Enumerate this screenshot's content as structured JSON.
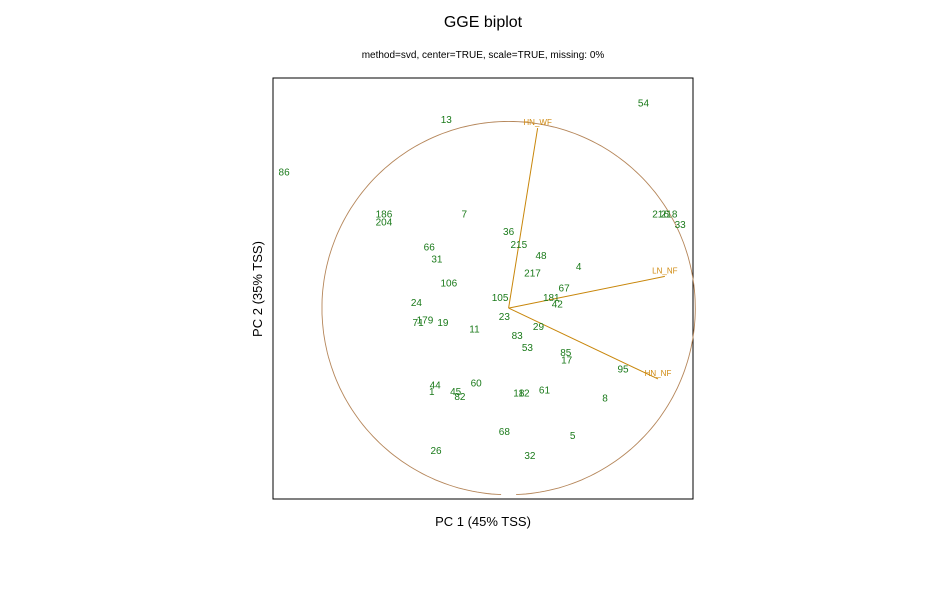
{
  "chart_data": {
    "type": "scatter",
    "title": "GGE biplot",
    "subtitle": "method=svd, center=TRUE, scale=TRUE, missing: 0%",
    "xlabel": "PC 1 (45% TSS)",
    "ylabel": "PC 2 (35% TSS)",
    "genotypes": [
      {
        "label": "54",
        "x": 1.58,
        "y": 2.46
      },
      {
        "label": "13",
        "x": -0.73,
        "y": 2.26
      },
      {
        "label": "86",
        "x": -2.63,
        "y": 1.63
      },
      {
        "label": "186",
        "x": -1.46,
        "y": 1.13
      },
      {
        "label": "204",
        "x": -1.46,
        "y": 1.03
      },
      {
        "label": "7",
        "x": -0.52,
        "y": 1.13
      },
      {
        "label": "216",
        "x": 1.78,
        "y": 1.13
      },
      {
        "label": "218",
        "x": 1.88,
        "y": 1.13
      },
      {
        "label": "33",
        "x": 2.01,
        "y": 1.0
      },
      {
        "label": "36",
        "x": 0.0,
        "y": 0.92
      },
      {
        "label": "215",
        "x": 0.12,
        "y": 0.76
      },
      {
        "label": "66",
        "x": -0.93,
        "y": 0.73
      },
      {
        "label": "48",
        "x": 0.38,
        "y": 0.63
      },
      {
        "label": "31",
        "x": -0.84,
        "y": 0.59
      },
      {
        "label": "4",
        "x": 0.82,
        "y": 0.5
      },
      {
        "label": "217",
        "x": 0.28,
        "y": 0.42
      },
      {
        "label": "106",
        "x": -0.7,
        "y": 0.3
      },
      {
        "label": "67",
        "x": 0.65,
        "y": 0.24
      },
      {
        "label": "105",
        "x": -0.1,
        "y": 0.13
      },
      {
        "label": "181",
        "x": 0.5,
        "y": 0.13
      },
      {
        "label": "24",
        "x": -1.08,
        "y": 0.07
      },
      {
        "label": "42",
        "x": 0.57,
        "y": 0.05
      },
      {
        "label": "23",
        "x": -0.05,
        "y": -0.1
      },
      {
        "label": "179",
        "x": -0.98,
        "y": -0.14
      },
      {
        "label": "71",
        "x": -1.06,
        "y": -0.17
      },
      {
        "label": "19",
        "x": -0.77,
        "y": -0.17
      },
      {
        "label": "11",
        "x": -0.4,
        "y": -0.25
      },
      {
        "label": "29",
        "x": 0.35,
        "y": -0.22
      },
      {
        "label": "83",
        "x": 0.1,
        "y": -0.33
      },
      {
        "label": "53",
        "x": 0.22,
        "y": -0.47
      },
      {
        "label": "85",
        "x": 0.67,
        "y": -0.53
      },
      {
        "label": "17",
        "x": 0.68,
        "y": -0.62
      },
      {
        "label": "95",
        "x": 1.34,
        "y": -0.73
      },
      {
        "label": "60",
        "x": -0.38,
        "y": -0.9
      },
      {
        "label": "44",
        "x": -0.86,
        "y": -0.92
      },
      {
        "label": "45",
        "x": -0.62,
        "y": -1.0
      },
      {
        "label": "1",
        "x": -0.9,
        "y": -1.0
      },
      {
        "label": "18",
        "x": 0.12,
        "y": -1.02
      },
      {
        "label": "12",
        "x": 0.18,
        "y": -1.02
      },
      {
        "label": "61",
        "x": 0.42,
        "y": -0.98
      },
      {
        "label": "82",
        "x": -0.57,
        "y": -1.06
      },
      {
        "label": "8",
        "x": 1.13,
        "y": -1.08
      },
      {
        "label": "68",
        "x": -0.05,
        "y": -1.48
      },
      {
        "label": "5",
        "x": 0.75,
        "y": -1.53
      },
      {
        "label": "26",
        "x": -0.85,
        "y": -1.71
      },
      {
        "label": "32",
        "x": 0.25,
        "y": -1.77
      }
    ],
    "environments": [
      {
        "label": "HN_WF",
        "x": 0.34,
        "y": 2.16
      },
      {
        "label": "LN_NF",
        "x": 1.83,
        "y": 0.38
      },
      {
        "label": "HN_NF",
        "x": 1.75,
        "y": -0.85
      }
    ],
    "xlim": [
      -2.76,
      2.16
    ],
    "ylim": [
      -2.29,
      2.76
    ],
    "grid": false
  }
}
